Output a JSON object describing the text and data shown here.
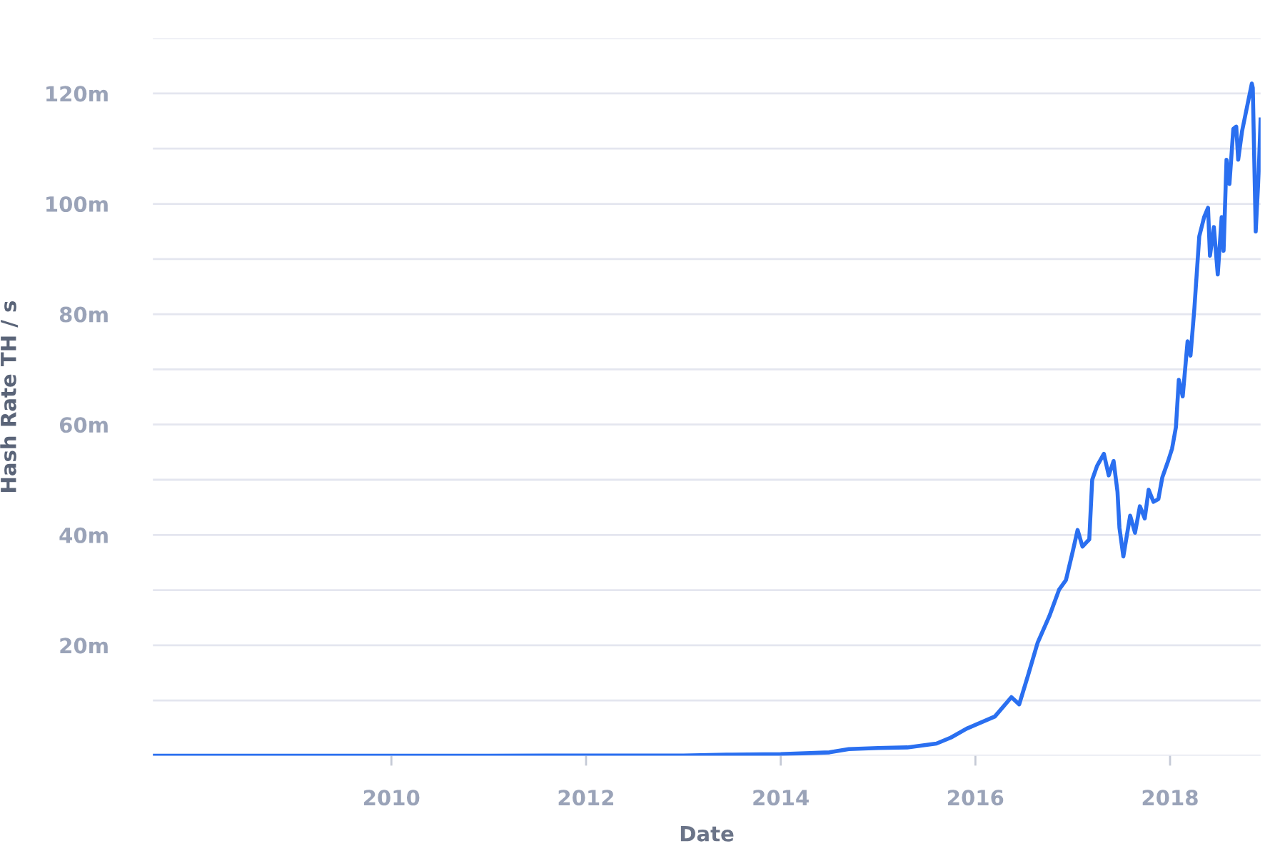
{
  "chart_data": {
    "type": "line",
    "xlabel": "Date",
    "ylabel": "Hash Rate TH / s",
    "x": [
      2007.55,
      2009.0,
      2010.0,
      2011.0,
      2012.0,
      2013.0,
      2013.5,
      2014.0,
      2014.5,
      2014.7,
      2015.0,
      2015.3,
      2015.6,
      2015.75,
      2015.91,
      2016.2,
      2016.37,
      2016.45,
      2016.54,
      2016.64,
      2016.76,
      2016.86,
      2016.93,
      2017.0,
      2017.05,
      2017.1,
      2017.17,
      2017.2,
      2017.25,
      2017.32,
      2017.37,
      2017.42,
      2017.46,
      2017.48,
      2017.52,
      2017.59,
      2017.64,
      2017.69,
      2017.74,
      2017.78,
      2017.83,
      2017.88,
      2017.92,
      2017.98,
      2018.02,
      2018.06,
      2018.09,
      2018.13,
      2018.18,
      2018.21,
      2018.25,
      2018.3,
      2018.35,
      2018.39,
      2018.41,
      2018.45,
      2018.49,
      2018.53,
      2018.55,
      2018.58,
      2018.61,
      2018.65,
      2018.68,
      2018.7,
      2018.74,
      2018.84,
      2018.85,
      2018.88,
      2018.91,
      2018.93
    ],
    "series": [
      {
        "color": "#2a6ff0",
        "values": [
          0,
          0,
          0,
          0.01,
          0.02,
          0.03,
          0.2,
          0.3,
          0.6,
          1.2,
          1.4,
          1.5,
          2.2,
          3.3,
          4.9,
          7.1,
          10.6,
          9.3,
          14.5,
          20.5,
          25.3,
          30.1,
          31.8,
          37,
          40.9,
          37.9,
          39.2,
          50,
          52.5,
          54.7,
          50.8,
          53.4,
          47.8,
          41.3,
          36.1,
          43.5,
          40.4,
          45.2,
          43,
          48.2,
          46,
          46.5,
          50.4,
          53.4,
          55.6,
          59.5,
          68.1,
          65.1,
          75.1,
          72.5,
          81.1,
          94.1,
          97.6,
          99.3,
          90.6,
          95.8,
          87.2,
          97.6,
          91.5,
          108,
          103.6,
          113.6,
          114,
          108,
          113.2,
          121.8,
          121,
          95,
          105.4,
          115.3
        ]
      }
    ],
    "xlim": [
      2007.55,
      2018.93
    ],
    "xticks": [
      2010,
      2012,
      2014,
      2016,
      2018
    ],
    "ylim": [
      0,
      130
    ],
    "yticks": [
      {
        "value": 0,
        "label": null
      },
      {
        "value": 10,
        "label": null
      },
      {
        "value": 20,
        "label": "20m"
      },
      {
        "value": 30,
        "label": null
      },
      {
        "value": 40,
        "label": "40m"
      },
      {
        "value": 50,
        "label": null
      },
      {
        "value": 60,
        "label": "60m"
      },
      {
        "value": 70,
        "label": null
      },
      {
        "value": 80,
        "label": "80m"
      },
      {
        "value": 90,
        "label": null
      },
      {
        "value": 100,
        "label": "100m"
      },
      {
        "value": 110,
        "label": null
      },
      {
        "value": 120,
        "label": "120m"
      },
      {
        "value": 130,
        "label": null
      }
    ],
    "grid": "y",
    "legend": false,
    "marker": "none",
    "line_style": "solid"
  }
}
